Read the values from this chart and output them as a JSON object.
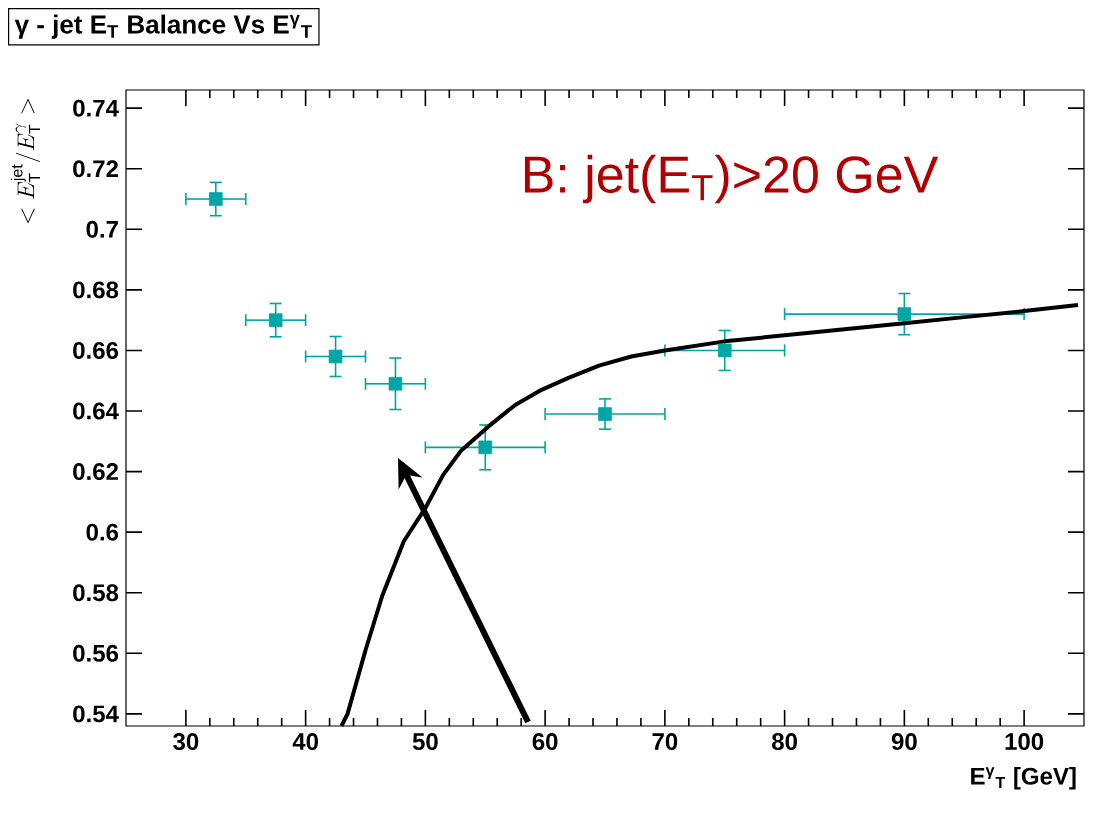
{
  "chart_data": {
    "type": "scatter",
    "title": "γ - jet E$_{T}$ Balance Vs  E$^{γ}$$_{T}$",
    "xlabel": "E$^{γ}$$_{T}$ [GeV]",
    "ylabel": "<E^{\\mathrm{jet}}_{\\mathrm{T}}/E^{\\gamma}_{\\mathrm{T}}>",
    "annotations": [
      "B: jet(E$_{T}$)>20 GeV"
    ],
    "xlim": [
      25,
      105
    ],
    "ylim": [
      0.536,
      0.746
    ],
    "xticks": [
      30,
      40,
      50,
      60,
      70,
      80,
      90,
      100
    ],
    "yticks": [
      0.54,
      0.56,
      0.58,
      0.6,
      0.62,
      0.64,
      0.66,
      0.68,
      0.7,
      0.72,
      0.74
    ],
    "series": [
      {
        "marker": "square",
        "color": "#00a6a6",
        "x": [
          32.5,
          37.5,
          42.5,
          47.5,
          55,
          65,
          75,
          90
        ],
        "values": [
          0.71,
          0.67,
          0.658,
          0.649,
          0.628,
          0.639,
          0.66,
          0.672
        ],
        "errors": [
          0.0055,
          0.0055,
          0.0066,
          0.0085,
          0.0074,
          0.005,
          0.0066,
          0.0068
        ],
        "xerrors": [
          2.5,
          2.5,
          2.5,
          2.5,
          5,
          5,
          5,
          10
        ]
      },
      {
        "type": "line",
        "marker": "none",
        "color": "#000000",
        "x": [
          43,
          43.5,
          45,
          46.4,
          48.2,
          50,
          51.5,
          53,
          55.3,
          57.5,
          59.7,
          62,
          64.5,
          67.2,
          70,
          75,
          80,
          85,
          90,
          95,
          100,
          104.5
        ],
        "values": [
          0.536,
          0.54,
          0.561,
          0.579,
          0.597,
          0.608,
          0.619,
          0.627,
          0.635,
          0.642,
          0.647,
          0.651,
          0.655,
          0.658,
          0.66,
          0.663,
          0.665,
          0.667,
          0.669,
          0.671,
          0.673,
          0.675
        ]
      }
    ]
  }
}
